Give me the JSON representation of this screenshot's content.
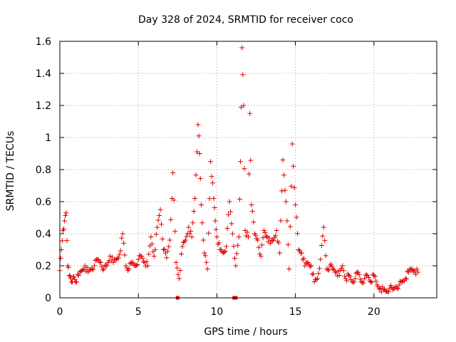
{
  "chart_data": {
    "type": "scatter",
    "title": "Day 328 of 2024, SRMTID for receiver coco",
    "xlabel": "GPS time / hours",
    "ylabel": "SRMTID / TECUs",
    "xlim": [
      0,
      24
    ],
    "ylim": [
      0,
      1.6
    ],
    "xticks": [
      0,
      5,
      10,
      15,
      20
    ],
    "xtick_labels": [
      "0",
      "5",
      "10",
      "15",
      "20"
    ],
    "yticks": [
      0,
      0.2,
      0.4,
      0.6,
      0.8,
      1.0,
      1.2,
      1.4,
      1.6
    ],
    "ytick_labels": [
      "0",
      "0.2",
      "0.4",
      "0.6",
      "0.8",
      "1",
      "1.2",
      "1.4",
      "1.6"
    ],
    "grid": true,
    "marker": "+",
    "marker_color": "#e00000",
    "series": [
      {
        "name": "SRMTID",
        "x": [
          0.0,
          0.1,
          0.2,
          0.3,
          0.4,
          0.5,
          0.6,
          0.7,
          0.8,
          0.9,
          1.0,
          1.2,
          1.4,
          1.6,
          1.8,
          2.0,
          2.2,
          2.4,
          2.6,
          2.8,
          3.0,
          3.2,
          3.4,
          3.6,
          3.8,
          4.0,
          4.2,
          4.4,
          4.6,
          4.8,
          5.0,
          5.2,
          5.4,
          5.6,
          5.8,
          6.0,
          6.2,
          6.4,
          6.6,
          6.8,
          7.0,
          7.2,
          7.4,
          7.6,
          7.8,
          8.0,
          8.2,
          8.4,
          8.6,
          8.8,
          8.9,
          9.0,
          9.2,
          9.4,
          9.6,
          9.8,
          9.9,
          10.0,
          10.2,
          10.4,
          10.6,
          10.8,
          11.0,
          11.2,
          11.4,
          11.5,
          11.6,
          11.7,
          11.8,
          12.0,
          12.1,
          12.2,
          12.4,
          12.6,
          12.8,
          13.0,
          13.2,
          13.4,
          13.6,
          13.8,
          14.0,
          14.2,
          14.4,
          14.6,
          14.8,
          15.0,
          15.2,
          15.4,
          15.6,
          15.8,
          16.0,
          16.2,
          16.4,
          16.6,
          16.8,
          17.0,
          17.2,
          17.4,
          17.6,
          17.8,
          18.0,
          18.2,
          18.4,
          18.6,
          18.8,
          19.0,
          19.2,
          19.4,
          19.6,
          19.8,
          20.0,
          20.2,
          20.4,
          20.6,
          20.8,
          21.0,
          21.2,
          21.4,
          21.6,
          21.8,
          22.0,
          22.2,
          22.4,
          22.6,
          22.8
        ],
        "y": [
          0.17,
          0.3,
          0.42,
          0.48,
          0.53,
          0.2,
          0.14,
          0.12,
          0.1,
          0.13,
          0.1,
          0.14,
          0.17,
          0.2,
          0.16,
          0.18,
          0.2,
          0.24,
          0.22,
          0.18,
          0.2,
          0.26,
          0.22,
          0.24,
          0.27,
          0.4,
          0.2,
          0.18,
          0.22,
          0.2,
          0.24,
          0.26,
          0.22,
          0.2,
          0.38,
          0.26,
          0.44,
          0.55,
          0.3,
          0.25,
          0.36,
          0.78,
          0.22,
          0.12,
          0.32,
          0.36,
          0.44,
          0.38,
          0.62,
          1.08,
          0.9,
          0.58,
          0.28,
          0.18,
          0.85,
          0.62,
          0.48,
          0.38,
          0.3,
          0.28,
          0.32,
          0.6,
          0.4,
          0.2,
          0.38,
          0.85,
          1.56,
          1.2,
          0.42,
          0.38,
          1.15,
          0.58,
          0.4,
          0.36,
          0.26,
          0.42,
          0.38,
          0.34,
          0.36,
          0.42,
          0.28,
          0.86,
          0.6,
          0.18,
          0.96,
          0.58,
          0.3,
          0.28,
          0.2,
          0.22,
          0.2,
          0.1,
          0.12,
          0.24,
          0.44,
          0.18,
          0.2,
          0.18,
          0.16,
          0.14,
          0.2,
          0.12,
          0.14,
          0.1,
          0.12,
          0.16,
          0.1,
          0.12,
          0.14,
          0.1,
          0.14,
          0.08,
          0.06,
          0.05,
          0.04,
          0.06,
          0.05,
          0.07,
          0.08,
          0.1,
          0.12,
          0.16,
          0.18,
          0.17,
          0.16
        ]
      }
    ],
    "extra_points": [
      {
        "x": 7.5,
        "y": 0.0
      },
      {
        "x": 11.1,
        "y": 0.0
      },
      {
        "x": 11.2,
        "y": 0.0
      }
    ]
  }
}
